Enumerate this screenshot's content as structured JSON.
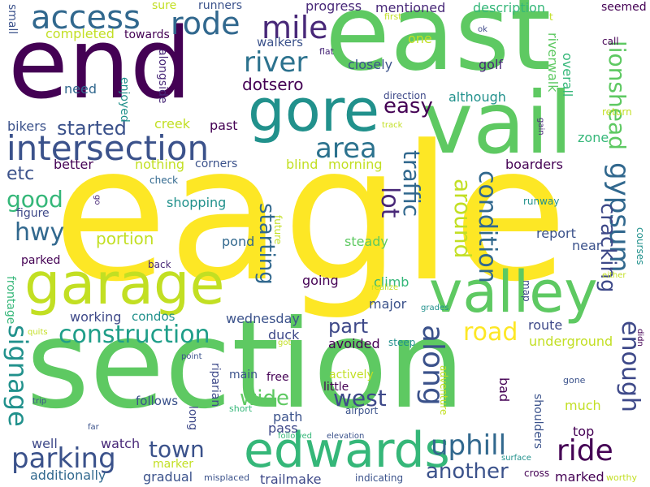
{
  "words": [
    {
      "text": "eagle",
      "color": "#fde725"
    },
    {
      "text": "section",
      "color": "#5ec962"
    },
    {
      "text": "east",
      "color": "#5ec962"
    },
    {
      "text": "end",
      "color": "#440154"
    },
    {
      "text": "vail",
      "color": "#5ec962"
    },
    {
      "text": "gore",
      "color": "#21918c"
    },
    {
      "text": "garage",
      "color": "#c2df23"
    },
    {
      "text": "valley",
      "color": "#5ec962"
    },
    {
      "text": "edwards",
      "color": "#35b779"
    },
    {
      "text": "intersection",
      "color": "#3b528b"
    },
    {
      "text": "access",
      "color": "#31688e"
    },
    {
      "text": "rode",
      "color": "#31688e"
    },
    {
      "text": "mile",
      "color": "#482878"
    },
    {
      "text": "river",
      "color": "#2c728e"
    },
    {
      "text": "dotsero",
      "color": "#440154"
    },
    {
      "text": "area",
      "color": "#2c728e"
    },
    {
      "text": "easy",
      "color": "#440154"
    },
    {
      "text": "started",
      "color": "#3b528b"
    },
    {
      "text": "construction",
      "color": "#1f9e89"
    },
    {
      "text": "parking",
      "color": "#3b528b"
    },
    {
      "text": "town",
      "color": "#3b528b"
    },
    {
      "text": "uphill",
      "color": "#31688e"
    },
    {
      "text": "ride",
      "color": "#440154"
    },
    {
      "text": "another",
      "color": "#3b528b"
    },
    {
      "text": "road",
      "color": "#fde725"
    },
    {
      "text": "part",
      "color": "#3e4989"
    },
    {
      "text": "west",
      "color": "#3e4989"
    },
    {
      "text": "wide",
      "color": "#5ec962"
    },
    {
      "text": "along",
      "color": "#3b528b"
    },
    {
      "text": "around",
      "color": "#c2df23"
    },
    {
      "text": "condition",
      "color": "#31688e"
    },
    {
      "text": "lionshead",
      "color": "#5ec962"
    },
    {
      "text": "gypsum",
      "color": "#31688e"
    },
    {
      "text": "cracking",
      "color": "#3e4989"
    },
    {
      "text": "enough",
      "color": "#3e4989"
    },
    {
      "text": "lot",
      "color": "#482878"
    },
    {
      "text": "traffic",
      "color": "#31688e"
    },
    {
      "text": "starting",
      "color": "#31688e"
    },
    {
      "text": "signage",
      "color": "#21918c"
    },
    {
      "text": "good",
      "color": "#35b779"
    },
    {
      "text": "hwy",
      "color": "#31688e"
    },
    {
      "text": "etc",
      "color": "#3b528b"
    },
    {
      "text": "portion",
      "color": "#c2df23"
    },
    {
      "text": "progress",
      "color": "#482878"
    },
    {
      "text": "mentioned",
      "color": "#482878"
    },
    {
      "text": "description",
      "color": "#35b779"
    },
    {
      "text": "seemed",
      "color": "#440154"
    },
    {
      "text": "sure",
      "color": "#c2df23"
    },
    {
      "text": "runners",
      "color": "#3b528b"
    },
    {
      "text": "completed",
      "color": "#c2df23"
    },
    {
      "text": "towards",
      "color": "#440154"
    },
    {
      "text": "walkers",
      "color": "#3b528b"
    },
    {
      "text": "flat",
      "color": "#482878"
    },
    {
      "text": "one",
      "color": "#c2df23"
    },
    {
      "text": "ok",
      "color": "#3e4989"
    },
    {
      "text": "first",
      "color": "#c2df23"
    },
    {
      "text": "call",
      "color": "#440154"
    },
    {
      "text": "small",
      "color": "#3b528b"
    },
    {
      "text": "alongside",
      "color": "#482878"
    },
    {
      "text": "closely",
      "color": "#3b528b"
    },
    {
      "text": "golf",
      "color": "#482878"
    },
    {
      "text": "overall",
      "color": "#35b779"
    },
    {
      "text": "riverwalk",
      "color": "#5ec962"
    },
    {
      "text": "need",
      "color": "#31688e"
    },
    {
      "text": "enjoyed",
      "color": "#21918c"
    },
    {
      "text": "direction",
      "color": "#3e4989"
    },
    {
      "text": "although",
      "color": "#21918c"
    },
    {
      "text": "creek",
      "color": "#c2df23"
    },
    {
      "text": "past",
      "color": "#440154"
    },
    {
      "text": "bikers",
      "color": "#3b528b"
    },
    {
      "text": "track",
      "color": "#c2df23"
    },
    {
      "text": "zone",
      "color": "#35b779"
    },
    {
      "text": "return",
      "color": "#c2df23"
    },
    {
      "text": "gain",
      "color": "#482878"
    },
    {
      "text": "better",
      "color": "#440154"
    },
    {
      "text": "nothing",
      "color": "#c2df23"
    },
    {
      "text": "corners",
      "color": "#3b528b"
    },
    {
      "text": "blind",
      "color": "#c2df23"
    },
    {
      "text": "morning",
      "color": "#c2df23"
    },
    {
      "text": "boarders",
      "color": "#440154"
    },
    {
      "text": "check",
      "color": "#31688e"
    },
    {
      "text": "shopping",
      "color": "#21918c"
    },
    {
      "text": "figure",
      "color": "#3e4989"
    },
    {
      "text": "go",
      "color": "#482878"
    },
    {
      "text": "runway",
      "color": "#21918c"
    },
    {
      "text": "pond",
      "color": "#31688e"
    },
    {
      "text": "steady",
      "color": "#5ec962"
    },
    {
      "text": "future",
      "color": "#c2df23"
    },
    {
      "text": "report",
      "color": "#3b528b"
    },
    {
      "text": "courses",
      "color": "#21918c"
    },
    {
      "text": "near",
      "color": "#3b528b"
    },
    {
      "text": "parked",
      "color": "#440154"
    },
    {
      "text": "back",
      "color": "#482878"
    },
    {
      "text": "frontage",
      "color": "#35b779"
    },
    {
      "text": "going",
      "color": "#440154"
    },
    {
      "text": "climb",
      "color": "#35b779"
    },
    {
      "text": "realize",
      "color": "#c2df23"
    },
    {
      "text": "map",
      "color": "#3e4989"
    },
    {
      "text": "either",
      "color": "#c2df23"
    },
    {
      "text": "working",
      "color": "#3e4989"
    },
    {
      "text": "condos",
      "color": "#21918c"
    },
    {
      "text": "major",
      "color": "#3b528b"
    },
    {
      "text": "wednesday",
      "color": "#3b528b"
    },
    {
      "text": "grades",
      "color": "#21918c"
    },
    {
      "text": "duck",
      "color": "#3e4989"
    },
    {
      "text": "route",
      "color": "#3e4989"
    },
    {
      "text": "underground",
      "color": "#c2df23"
    },
    {
      "text": "quits",
      "color": "#c2df23"
    },
    {
      "text": "got",
      "color": "#c2df23"
    },
    {
      "text": "avoided",
      "color": "#440154"
    },
    {
      "text": "steep",
      "color": "#21918c"
    },
    {
      "text": "didn",
      "color": "#440154"
    },
    {
      "text": "point",
      "color": "#3b528b"
    },
    {
      "text": "main",
      "color": "#3b528b"
    },
    {
      "text": "free",
      "color": "#440154"
    },
    {
      "text": "actively",
      "color": "#c2df23"
    },
    {
      "text": "riparian",
      "color": "#3e4989"
    },
    {
      "text": "little",
      "color": "#440154"
    },
    {
      "text": "adventure",
      "color": "#c2df23"
    },
    {
      "text": "bad",
      "color": "#440154"
    },
    {
      "text": "gone",
      "color": "#3b528b"
    },
    {
      "text": "follows",
      "color": "#3b528b"
    },
    {
      "text": "shoulders",
      "color": "#3b528b"
    },
    {
      "text": "much",
      "color": "#c2df23"
    },
    {
      "text": "trip",
      "color": "#3b528b"
    },
    {
      "text": "long",
      "color": "#3e4989"
    },
    {
      "text": "short",
      "color": "#35b779"
    },
    {
      "text": "path",
      "color": "#3b528b"
    },
    {
      "text": "airport",
      "color": "#3b528b"
    },
    {
      "text": "far",
      "color": "#3b528b"
    },
    {
      "text": "pass",
      "color": "#3e4989"
    },
    {
      "text": "top",
      "color": "#440154"
    },
    {
      "text": "well",
      "color": "#3e4989"
    },
    {
      "text": "watch",
      "color": "#482878"
    },
    {
      "text": "followed",
      "color": "#35b779"
    },
    {
      "text": "elevation",
      "color": "#3b528b"
    },
    {
      "text": "surface",
      "color": "#21918c"
    },
    {
      "text": "additionally",
      "color": "#31688e"
    },
    {
      "text": "marker",
      "color": "#c2df23"
    },
    {
      "text": "gradual",
      "color": "#3b528b"
    },
    {
      "text": "misplaced",
      "color": "#3b528b"
    },
    {
      "text": "trailmake",
      "color": "#3e4989"
    },
    {
      "text": "indicating",
      "color": "#3b528b"
    },
    {
      "text": "cross",
      "color": "#440154"
    },
    {
      "text": "marked",
      "color": "#440154"
    },
    {
      "text": "worthy",
      "color": "#c2df23"
    },
    {
      "text": "t",
      "color": "#c2df23"
    }
  ]
}
